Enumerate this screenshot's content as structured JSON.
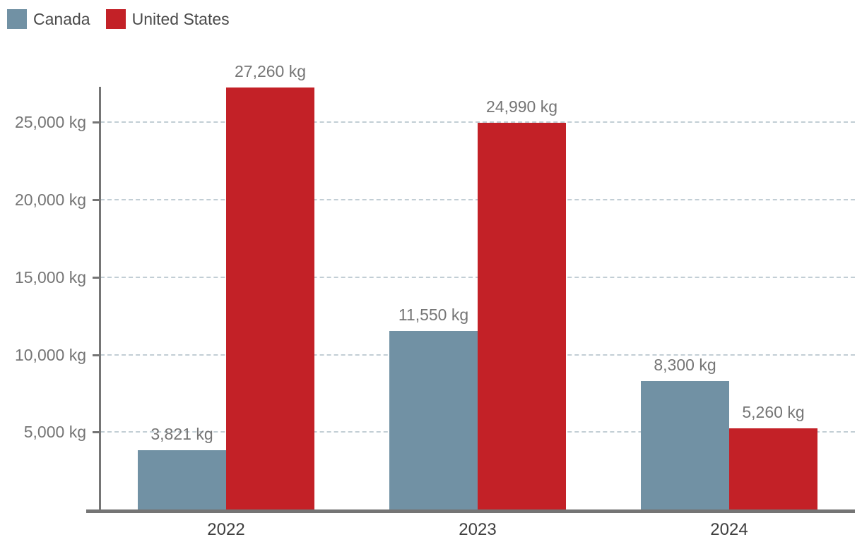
{
  "legend": {
    "position": "top-left",
    "items": [
      {
        "label": "Canada",
        "color": "#7191a4"
      },
      {
        "label": "United States",
        "color": "#c32127"
      }
    ]
  },
  "chart_data": {
    "type": "bar",
    "title": "",
    "categories": [
      "2022",
      "2023",
      "2024"
    ],
    "series": [
      {
        "name": "Canada",
        "color": "#7191a4",
        "values": [
          3821,
          11550,
          8300
        ],
        "labels": [
          "3,821 kg",
          "11,550 kg",
          "8,300 kg"
        ]
      },
      {
        "name": "United States",
        "color": "#c32127",
        "values": [
          27260,
          24990,
          5260
        ],
        "labels": [
          "27,260 kg",
          "24,990 kg",
          "5,260 kg"
        ]
      }
    ],
    "unit": "kg",
    "ylim": [
      0,
      27300
    ],
    "yticks": [
      {
        "value": 5000,
        "label": "5,000 kg"
      },
      {
        "value": 10000,
        "label": "10,000 kg"
      },
      {
        "value": 15000,
        "label": "15,000 kg"
      },
      {
        "value": 20000,
        "label": "20,000 kg"
      },
      {
        "value": 25000,
        "label": "25,000 kg"
      }
    ],
    "grid": "horizontal-dashed",
    "legend_position": "top-left"
  },
  "colors": {
    "background": "#ffffff",
    "grid": "#c2ced5",
    "axis": "#757575",
    "tick_label": "#757575",
    "value_label": "#757575",
    "category_label": "#3f3f3f",
    "legend_text": "#4a4a4a"
  }
}
